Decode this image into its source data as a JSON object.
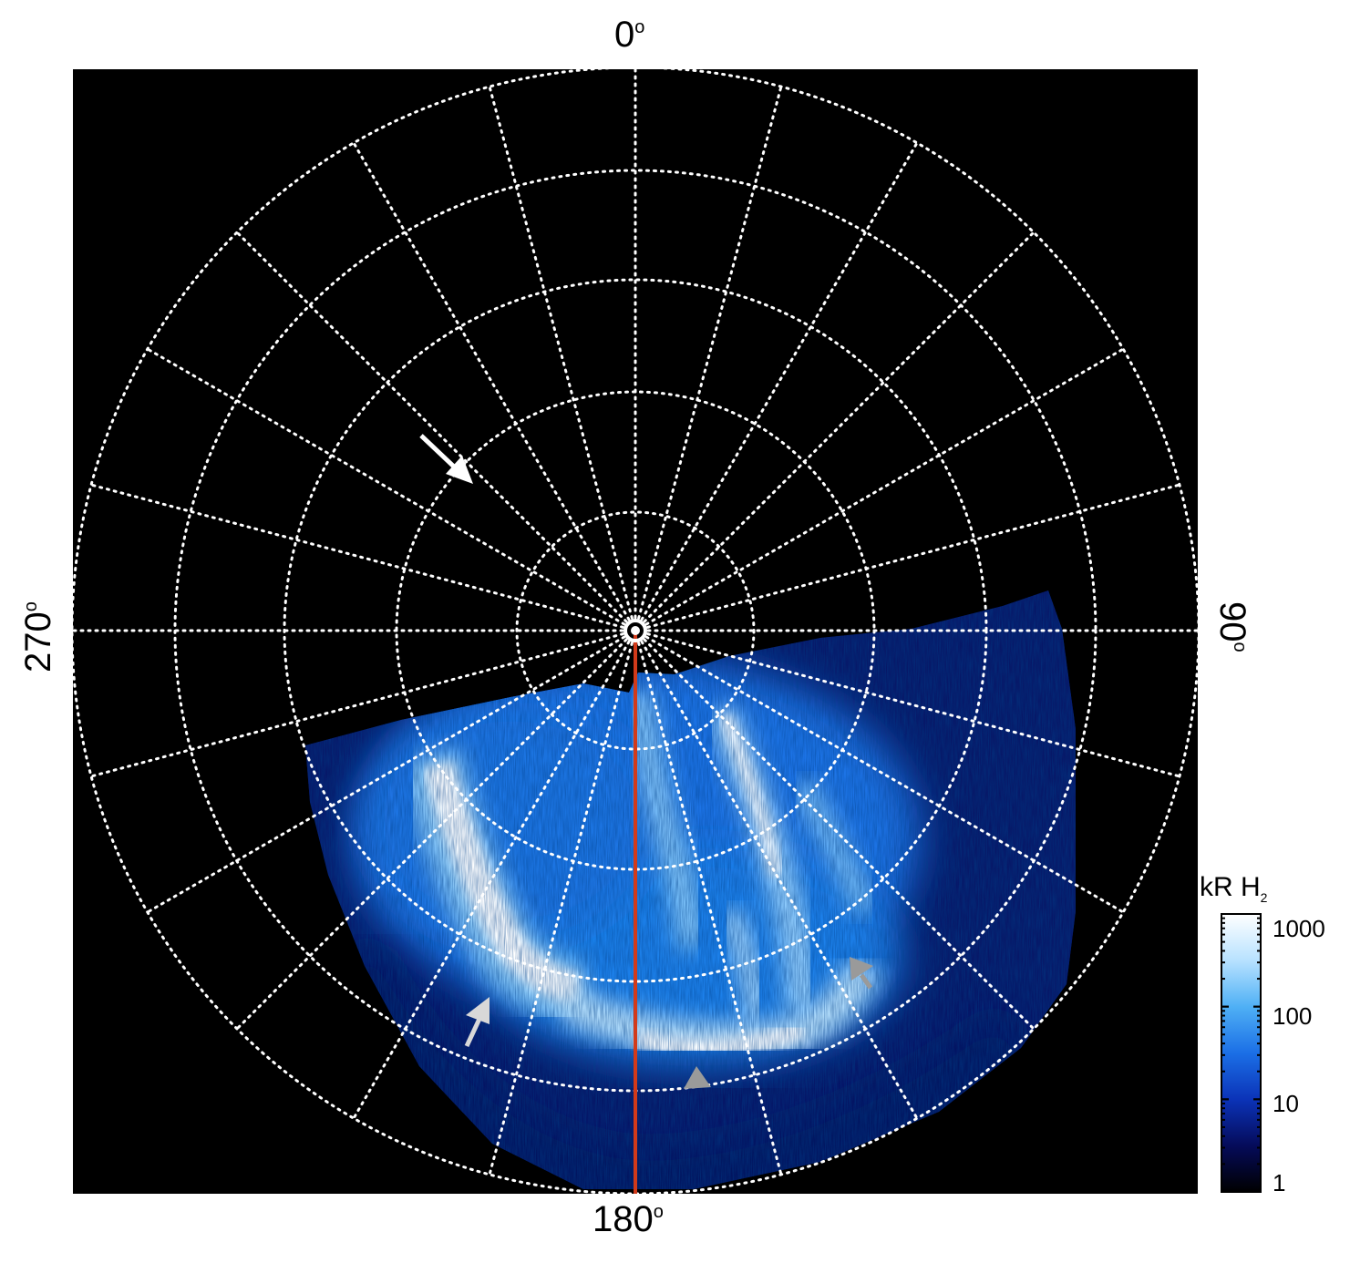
{
  "figure": {
    "labels": {
      "top": "0",
      "bottom": "180",
      "left": "270",
      "right": "90",
      "degree_symbol": "o"
    },
    "colorbar": {
      "title": "kR H",
      "title_subscript": "2",
      "ticks": [
        "1000",
        "100",
        "10",
        "1"
      ],
      "gradient_colors": [
        "#000000",
        "#050b5a",
        "#0b33b8",
        "#1b6fe6",
        "#4fb0f5",
        "#b8e2ff",
        "#ffffff"
      ]
    },
    "colors": {
      "background": "#000000",
      "grid": "#ffffff",
      "meridian_line": "#d23a1a",
      "arrow_white": "#ffffff",
      "arrow_light_gray": "#d8d8d8",
      "arrow_gray": "#9a9a9a"
    },
    "grid": {
      "meridians": 24,
      "circles": 6
    },
    "annotations": [
      "arrow-white",
      "arrow-light-gray",
      "arrow-gray-bottom",
      "arrow-gray-right"
    ]
  }
}
